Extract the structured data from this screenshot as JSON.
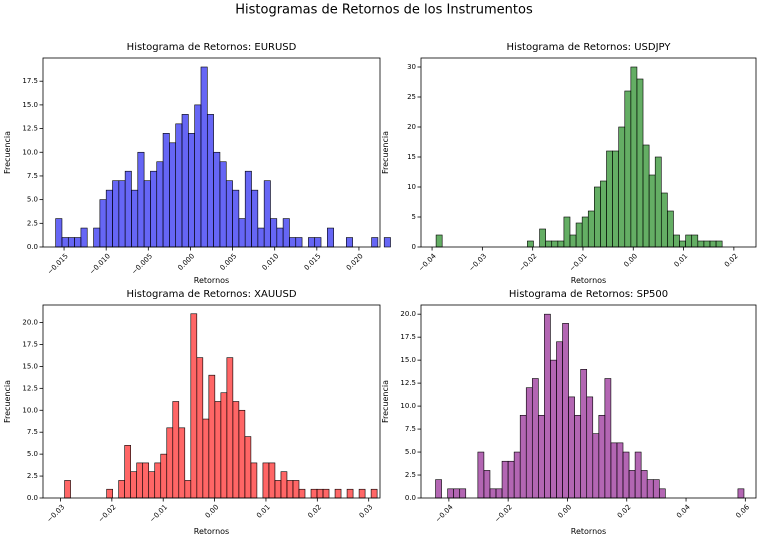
{
  "figure": {
    "suptitle": "Histogramas de Retornos de los Instrumentos"
  },
  "chart_data": [
    {
      "type": "bar",
      "title": "Histograma de Retornos: EURUSD",
      "xlabel": "Retornos",
      "ylabel": "Frecuencia",
      "color": "#0000ee",
      "alpha": 0.6,
      "xlim": [
        -0.0175,
        0.0225
      ],
      "ylim": [
        0,
        19.95
      ],
      "xticks": [
        -0.015,
        -0.01,
        -0.005,
        0.0,
        0.005,
        0.01,
        0.015,
        0.02
      ],
      "xtick_labels": [
        "−0.015",
        "−0.010",
        "−0.005",
        "0.000",
        "0.005",
        "0.010",
        "0.015",
        "0.020"
      ],
      "yticks": [
        0,
        2.5,
        5.0,
        7.5,
        10.0,
        12.5,
        15.0,
        17.5
      ],
      "ytick_labels": [
        "0.0",
        "2.5",
        "5.0",
        "7.5",
        "10.0",
        "12.5",
        "15.0",
        "17.5"
      ],
      "bin_start": -0.016,
      "bin_width": 0.00075,
      "values": [
        3,
        1,
        1,
        1,
        2,
        0,
        2,
        5,
        6,
        7,
        7,
        8,
        6,
        10,
        7,
        8,
        9,
        12,
        11,
        13,
        14,
        12,
        15,
        19,
        14,
        10,
        9,
        7,
        6,
        3,
        8,
        6,
        2,
        7,
        3,
        2,
        3,
        1,
        1,
        0,
        1,
        1,
        0,
        2,
        0,
        0,
        1,
        0,
        0,
        0,
        1,
        0,
        1
      ]
    },
    {
      "type": "bar",
      "title": "Histograma de Retornos: USDJPY",
      "xlabel": "Retornos",
      "ylabel": "Frecuencia",
      "color": "#228b22",
      "alpha": 0.7,
      "xlim": [
        -0.0422,
        0.0244
      ],
      "ylim": [
        0,
        31.5
      ],
      "xticks": [
        -0.04,
        -0.03,
        -0.02,
        -0.01,
        0.0,
        0.01,
        0.02
      ],
      "xtick_labels": [
        "−0.04",
        "−0.03",
        "−0.02",
        "−0.01",
        "0.00",
        "0.01",
        "0.02"
      ],
      "yticks": [
        0,
        5,
        10,
        15,
        20,
        25,
        30
      ],
      "ytick_labels": [
        "0",
        "5",
        "10",
        "15",
        "20",
        "25",
        "30"
      ],
      "bin_start": -0.0392,
      "bin_width": 0.00121,
      "values": [
        2,
        0,
        0,
        0,
        0,
        0,
        0,
        0,
        0,
        0,
        0,
        0,
        0,
        0,
        0,
        1,
        0,
        3,
        1,
        1,
        1,
        5,
        2,
        4,
        5,
        6,
        10,
        11,
        16,
        16,
        20,
        26,
        30,
        28,
        17,
        12,
        15,
        9,
        6,
        2,
        1,
        2,
        2,
        1,
        1,
        1,
        1
      ]
    },
    {
      "type": "bar",
      "title": "Histograma de Retornos: XAUUSD",
      "xlabel": "Retornos",
      "ylabel": "Frecuencia",
      "color": "#ff0000",
      "alpha": 0.6,
      "xlim": [
        -0.0334,
        0.0322
      ],
      "ylim": [
        0,
        22.0
      ],
      "xticks": [
        -0.03,
        -0.02,
        -0.01,
        0.0,
        0.01,
        0.02,
        0.03
      ],
      "xtick_labels": [
        "−0.03",
        "−0.02",
        "−0.01",
        "0.00",
        "0.01",
        "0.02",
        "0.03"
      ],
      "yticks": [
        0,
        2.5,
        5.0,
        7.5,
        10.0,
        12.5,
        15.0,
        17.5,
        20.0
      ],
      "ytick_labels": [
        "0.0",
        "2.5",
        "5.0",
        "7.5",
        "10.0",
        "12.5",
        "15.0",
        "17.5",
        "20.0"
      ],
      "bin_start": -0.0292,
      "bin_width": 0.00117,
      "values": [
        2,
        0,
        0,
        0,
        0,
        0,
        0,
        1,
        0,
        2,
        6,
        3,
        4,
        4,
        3,
        4,
        5,
        8,
        11,
        8,
        2,
        21,
        16,
        9,
        14,
        11,
        12,
        16,
        11,
        10,
        7,
        4,
        0,
        4,
        4,
        2,
        3,
        2,
        2,
        1,
        0,
        1,
        1,
        1,
        0,
        1,
        0,
        1,
        0,
        1,
        0,
        1
      ]
    },
    {
      "type": "bar",
      "title": "Histograma de Retornos: SP500",
      "xlabel": "Retornos",
      "ylabel": "Frecuencia",
      "color": "#800080",
      "alpha": 0.6,
      "xlim": [
        -0.0494,
        0.0636
      ],
      "ylim": [
        0,
        21.0
      ],
      "xticks": [
        -0.04,
        -0.02,
        0.0,
        0.02,
        0.04,
        0.06
      ],
      "xtick_labels": [
        "−0.04",
        "−0.02",
        "0.00",
        "0.02",
        "0.04",
        "0.06"
      ],
      "yticks": [
        0,
        2.5,
        5.0,
        7.5,
        10.0,
        12.5,
        15.0,
        17.5,
        20.0
      ],
      "ytick_labels": [
        "0.0",
        "2.5",
        "5.0",
        "7.5",
        "10.0",
        "12.5",
        "15.0",
        "17.5",
        "20.0"
      ],
      "bin_start": -0.0445,
      "bin_width": 0.00204,
      "values": [
        2,
        0,
        1,
        1,
        1,
        0,
        0,
        5,
        3,
        1,
        1,
        4,
        4,
        5,
        9,
        12,
        13,
        9,
        20,
        15,
        17,
        19,
        11,
        9,
        14,
        11,
        7,
        9,
        13,
        6,
        6,
        5,
        3,
        5,
        3,
        2,
        2,
        1,
        0,
        0,
        0,
        0,
        0,
        0,
        0,
        0,
        0,
        0,
        0,
        0,
        1
      ]
    }
  ]
}
